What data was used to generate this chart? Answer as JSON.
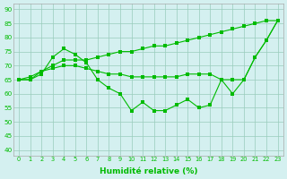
{
  "line_top": [
    65,
    65,
    68,
    70,
    72,
    72,
    72,
    73,
    74,
    75,
    75,
    76,
    77,
    77,
    78,
    79,
    80,
    81,
    82,
    83,
    84,
    85,
    86,
    86
  ],
  "line_mid": [
    65,
    66,
    68,
    69,
    70,
    70,
    69,
    68,
    67,
    67,
    66,
    66,
    66,
    66,
    66,
    67,
    67,
    67,
    65,
    65,
    65,
    73,
    79,
    86
  ],
  "line_bot": [
    65,
    65,
    67,
    73,
    76,
    74,
    71,
    65,
    62,
    60,
    54,
    57,
    54,
    54,
    56,
    58,
    55,
    56,
    65,
    60,
    65,
    73,
    79,
    86
  ],
  "xlabel": "Humidité relative (%)",
  "ylim": [
    38,
    92
  ],
  "yticks": [
    40,
    45,
    50,
    55,
    60,
    65,
    70,
    75,
    80,
    85,
    90
  ],
  "xticks": [
    0,
    1,
    2,
    3,
    4,
    5,
    6,
    7,
    8,
    9,
    10,
    11,
    12,
    13,
    14,
    15,
    16,
    17,
    18,
    19,
    20,
    21,
    22,
    23
  ],
  "line_color": "#00bb00",
  "bg_color": "#d4f0f0",
  "grid_color": "#99ccbb"
}
